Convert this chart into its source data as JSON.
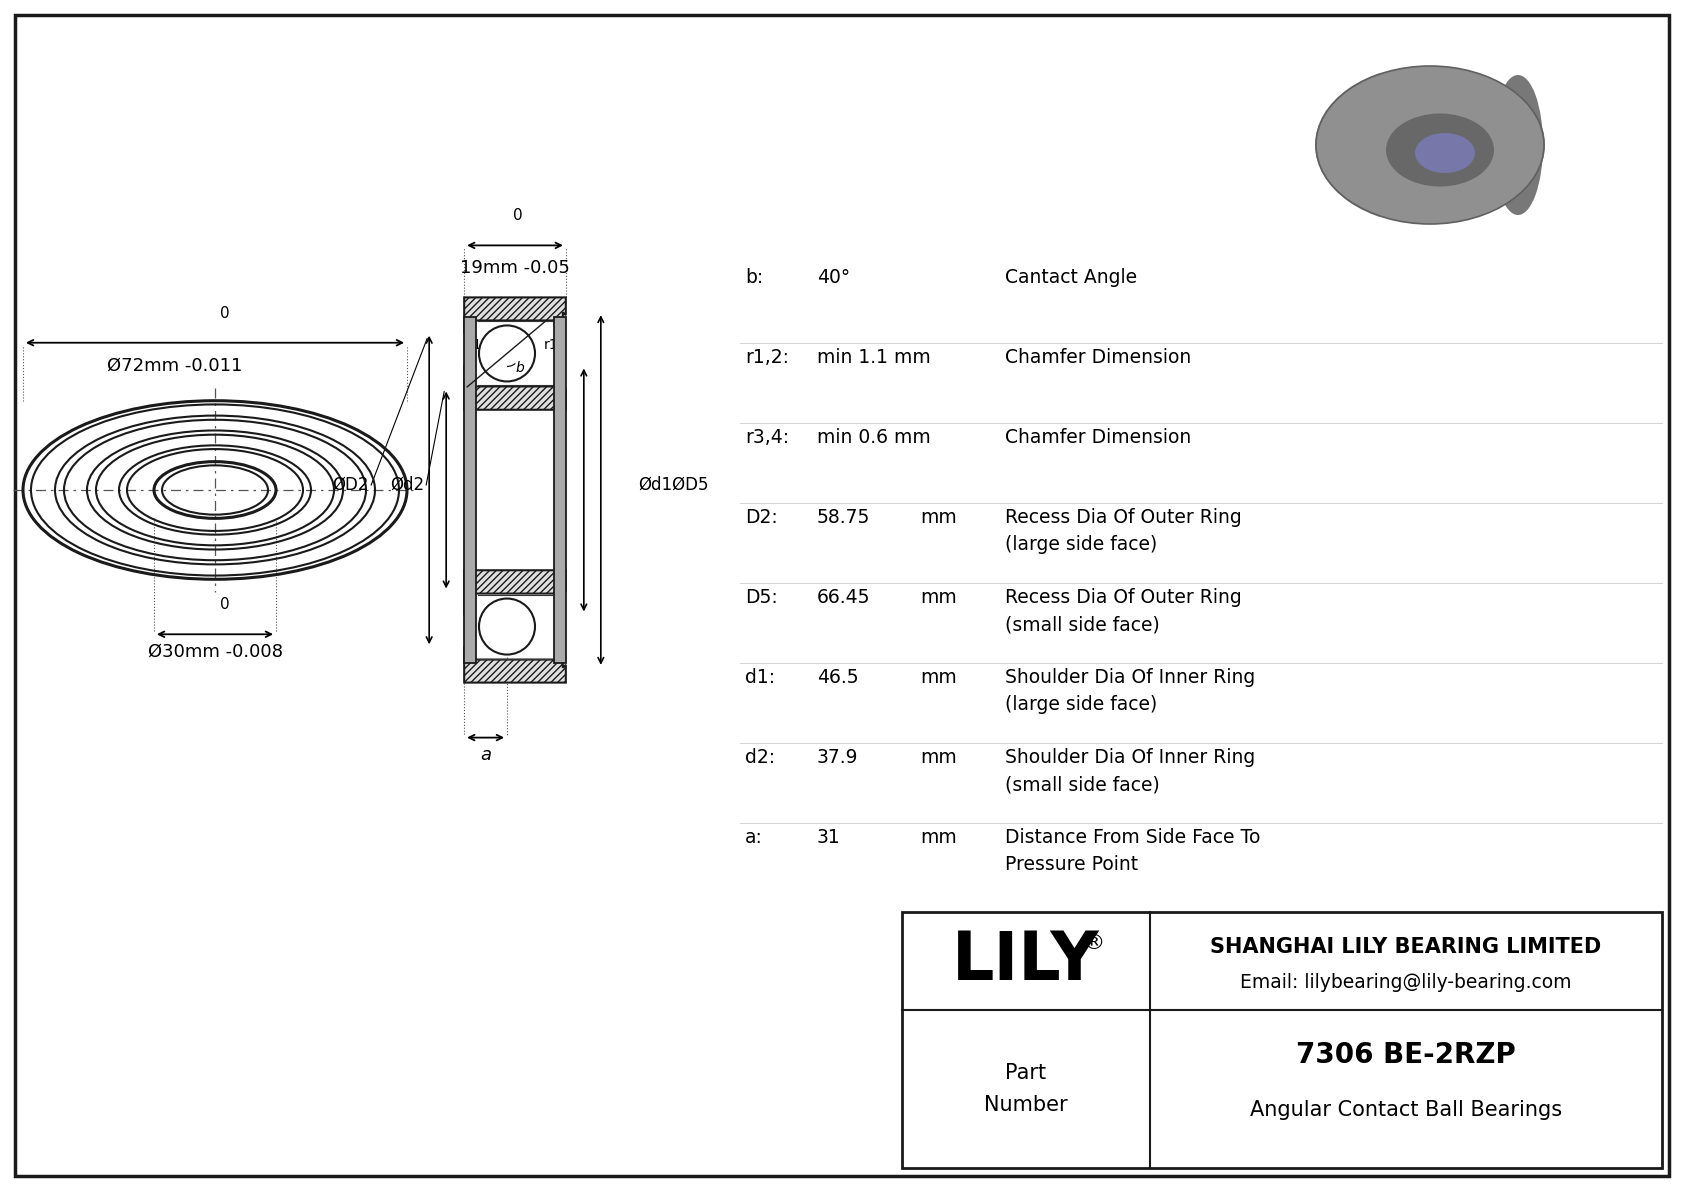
{
  "bg_color": "#ffffff",
  "outer_dia_label": "Ø72mm -0.011",
  "outer_dia_upper": "0",
  "inner_dia_label": "Ø30mm -0.008",
  "inner_dia_upper": "0",
  "width_label": "19mm -0.05",
  "width_upper": "0",
  "company_logo": "LILY",
  "company_name": "SHANGHAI LILY BEARING LIMITED",
  "company_email": "Email: lilybearing@lily-bearing.com",
  "title_part_number": "7306 BE-2RZP",
  "title_type": "Angular Contact Ball Bearings",
  "params": [
    {
      "symbol": "b:",
      "value": "40°",
      "unit": "",
      "description": "Cantact Angle"
    },
    {
      "symbol": "r1,2:",
      "value": "min 1.1 mm",
      "unit": "",
      "description": "Chamfer Dimension"
    },
    {
      "symbol": "r3,4:",
      "value": "min 0.6 mm",
      "unit": "",
      "description": "Chamfer Dimension"
    },
    {
      "symbol": "D2:",
      "value": "58.75",
      "unit": "mm",
      "description": "Recess Dia Of Outer Ring\n(large side face)"
    },
    {
      "symbol": "D5:",
      "value": "66.45",
      "unit": "mm",
      "description": "Recess Dia Of Outer Ring\n(small side face)"
    },
    {
      "symbol": "d1:",
      "value": "46.5",
      "unit": "mm",
      "description": "Shoulder Dia Of Inner Ring\n(large side face)"
    },
    {
      "symbol": "d2:",
      "value": "37.9",
      "unit": "mm",
      "description": "Shoulder Dia Of Inner Ring\n(small side face)"
    },
    {
      "symbol": "a:",
      "value": "31",
      "unit": "mm",
      "description": "Distance From Side Face To\nPressure Point"
    }
  ]
}
